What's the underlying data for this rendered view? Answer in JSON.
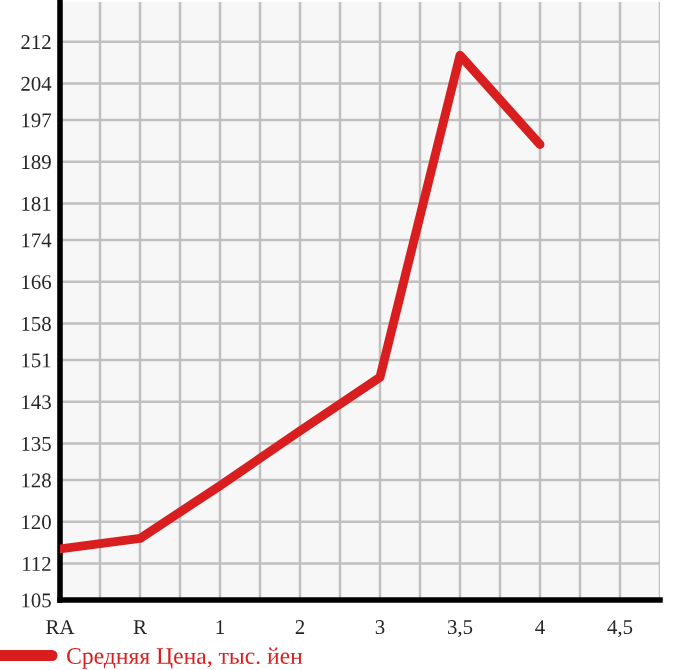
{
  "chart_data": {
    "type": "line",
    "categories": [
      "RA",
      "R",
      "1",
      "2",
      "3",
      "3,5",
      "4",
      "4,5"
    ],
    "series": [
      {
        "name": "Средняя Цена, тыс. йен",
        "color": "#d81e1e",
        "values": [
          114.8,
          116.8,
          126.9,
          137.4,
          147.7,
          209.4,
          192.3,
          null
        ]
      }
    ],
    "ylim": [
      105,
      219.6
    ],
    "yticks": [
      105,
      112,
      120,
      128,
      135,
      143,
      151,
      158,
      166,
      174,
      181,
      189,
      197,
      204,
      212
    ],
    "grid": true,
    "legend": "bottom",
    "marker": "none",
    "line_style": "solid"
  }
}
